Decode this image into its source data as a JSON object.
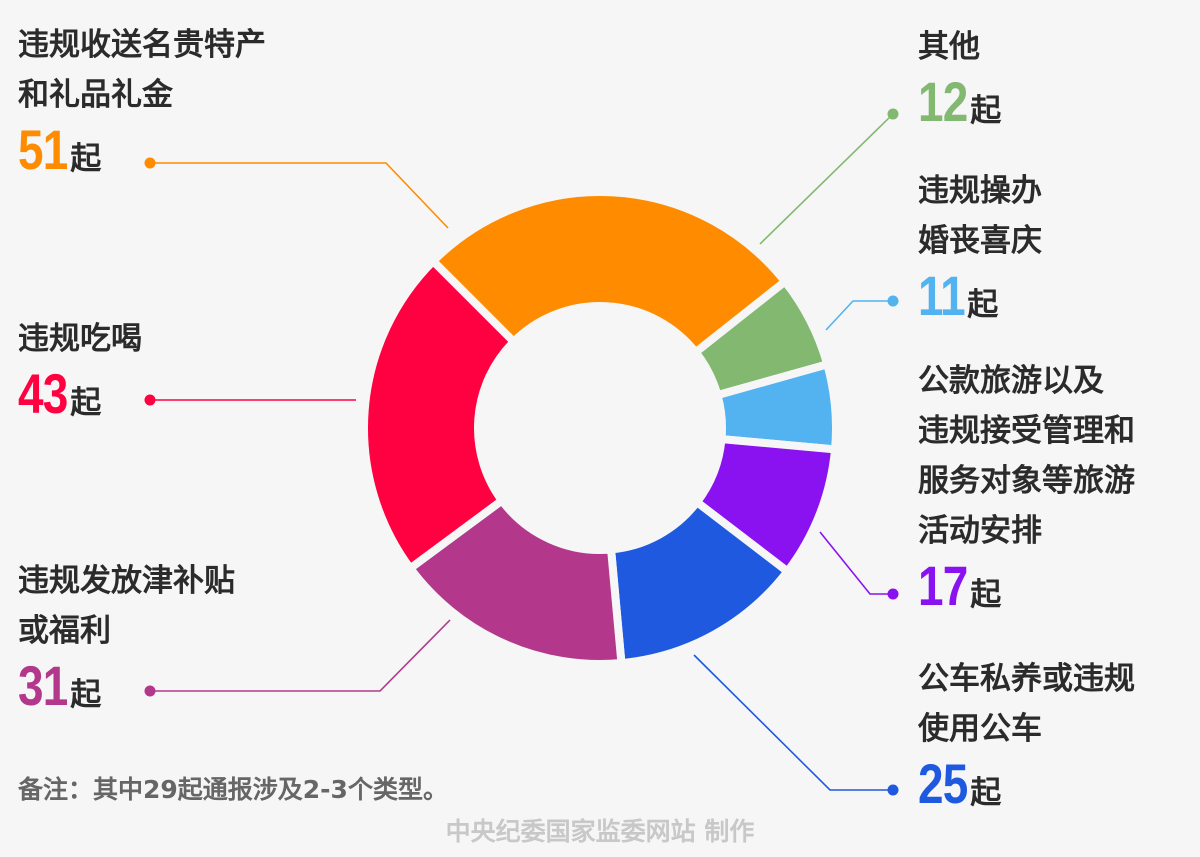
{
  "chart_data": {
    "type": "pie",
    "slices": [
      {
        "key": "gifts",
        "label_lines": [
          "违规收送名贵特产",
          "和礼品礼金"
        ],
        "value": 51,
        "unit": "起",
        "color": "#ff8c00"
      },
      {
        "key": "other",
        "label_lines": [
          "其他"
        ],
        "value": 12,
        "unit": "起",
        "color": "#82b86f"
      },
      {
        "key": "wedding",
        "label_lines": [
          "违规操办",
          "婚丧喜庆"
        ],
        "value": 11,
        "unit": "起",
        "color": "#52b3f0"
      },
      {
        "key": "travel",
        "label_lines": [
          "公款旅游以及",
          "违规接受管理和",
          "服务对象等旅游",
          "活动安排"
        ],
        "value": 17,
        "unit": "起",
        "color": "#8b12f0"
      },
      {
        "key": "car",
        "label_lines": [
          "公车私养或违规",
          "使用公车"
        ],
        "value": 25,
        "unit": "起",
        "color": "#1f59e0"
      },
      {
        "key": "subsidy",
        "label_lines": [
          "违规发放津补贴",
          "或福利"
        ],
        "value": 31,
        "unit": "起",
        "color": "#b3388b"
      },
      {
        "key": "dining",
        "label_lines": [
          "违规吃喝"
        ],
        "value": 43,
        "unit": "起",
        "color": "#ff0040"
      }
    ]
  },
  "note": "备注：其中29起通报涉及2-3个类型。",
  "credit": "中央纪委国家监委网站 制作"
}
